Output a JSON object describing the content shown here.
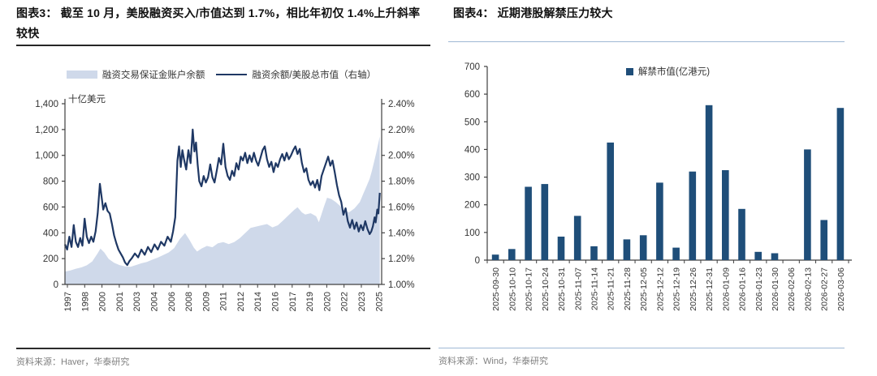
{
  "figure3": {
    "title": "图表3：  截至 10 月，美股融资买入/市值达到 1.7%，相比年初仅 1.4%上升斜率较快",
    "legend_area": "融资交易保证金账户余额",
    "legend_line": "融资余额/美股总市值（右轴）",
    "axis_unit": "十亿美元",
    "source": "资料来源：Haver，华泰研究"
  },
  "figure4": {
    "title": "图表4：  近期港股解禁压力较大",
    "legend": "解禁市值(亿港元)",
    "source": "资料来源：Wind，华泰研究"
  },
  "colors": {
    "line_navy": "#1f3864",
    "area_fill": "#cfd9ea",
    "bar_navy": "#1f4e79",
    "axis_line": "#404040",
    "tick_text": "#333333",
    "source_text": "#808080",
    "rule_dark": "#262626",
    "rule_blue": "#9fb8d4"
  },
  "chart_data": [
    {
      "type": "area",
      "subtype": "area-plus-line-dual-axis",
      "figure_label": "图表3",
      "x_range": [
        1997,
        2026
      ],
      "x_tick_labels": [
        "1997",
        "1998",
        "2000",
        "2001",
        "2003",
        "2004",
        "2006",
        "2008",
        "2009",
        "2011",
        "2012",
        "2014",
        "2016",
        "2017",
        "2019",
        "2020",
        "2022",
        "2023",
        "2025"
      ],
      "x_tick_interval_months": 19,
      "left_axis": {
        "title": "十亿美元",
        "min": 0,
        "max": 1400,
        "tick_step": 200
      },
      "right_axis": {
        "min": 1.0,
        "max": 2.4,
        "tick_step": 0.2,
        "format": "percent"
      },
      "grid": false,
      "legend_position": "top-center",
      "series": [
        {
          "name": "融资交易保证金账户余额",
          "type": "area",
          "axis": "left",
          "color": "#cfd9ea",
          "points": [
            [
              1997.0,
              100
            ],
            [
              1997.5,
              108
            ],
            [
              1998.0,
              122
            ],
            [
              1998.5,
              132
            ],
            [
              1999.0,
              148
            ],
            [
              1999.5,
              178
            ],
            [
              2000.0,
              242
            ],
            [
              2000.25,
              278
            ],
            [
              2000.6,
              248
            ],
            [
              2001.0,
              198
            ],
            [
              2001.5,
              168
            ],
            [
              2002.0,
              150
            ],
            [
              2002.5,
              140
            ],
            [
              2003.0,
              136
            ],
            [
              2003.5,
              150
            ],
            [
              2004.0,
              164
            ],
            [
              2004.5,
              174
            ],
            [
              2005.0,
              192
            ],
            [
              2005.5,
              208
            ],
            [
              2006.0,
              228
            ],
            [
              2006.5,
              248
            ],
            [
              2007.0,
              282
            ],
            [
              2007.5,
              350
            ],
            [
              2008.0,
              398
            ],
            [
              2008.4,
              345
            ],
            [
              2008.8,
              285
            ],
            [
              2009.1,
              255
            ],
            [
              2009.5,
              278
            ],
            [
              2010.0,
              298
            ],
            [
              2010.5,
              288
            ],
            [
              2011.0,
              318
            ],
            [
              2011.5,
              328
            ],
            [
              2012.0,
              312
            ],
            [
              2012.5,
              328
            ],
            [
              2013.0,
              358
            ],
            [
              2013.5,
              398
            ],
            [
              2014.0,
              438
            ],
            [
              2014.5,
              448
            ],
            [
              2015.0,
              458
            ],
            [
              2015.5,
              468
            ],
            [
              2016.0,
              442
            ],
            [
              2016.5,
              458
            ],
            [
              2017.0,
              498
            ],
            [
              2017.5,
              538
            ],
            [
              2018.0,
              578
            ],
            [
              2018.3,
              598
            ],
            [
              2018.7,
              558
            ],
            [
              2019.0,
              542
            ],
            [
              2019.5,
              552
            ],
            [
              2020.0,
              528
            ],
            [
              2020.25,
              482
            ],
            [
              2020.7,
              598
            ],
            [
              2021.0,
              672
            ],
            [
              2021.4,
              662
            ],
            [
              2021.8,
              638
            ],
            [
              2022.2,
              608
            ],
            [
              2022.6,
              572
            ],
            [
              2023.0,
              558
            ],
            [
              2023.5,
              588
            ],
            [
              2024.0,
              638
            ],
            [
              2024.3,
              698
            ],
            [
              2024.6,
              758
            ],
            [
              2024.9,
              818
            ],
            [
              2025.1,
              878
            ],
            [
              2025.3,
              948
            ],
            [
              2025.5,
              1018
            ],
            [
              2025.65,
              1078
            ],
            [
              2025.83,
              1148
            ]
          ]
        },
        {
          "name": "融资余额/美股总市值（右轴）",
          "type": "line",
          "axis": "right",
          "color": "#1f3864",
          "points": [
            [
              1997.0,
              1.31
            ],
            [
              1997.2,
              1.27
            ],
            [
              1997.4,
              1.37
            ],
            [
              1997.6,
              1.29
            ],
            [
              1997.8,
              1.46
            ],
            [
              1998.0,
              1.33
            ],
            [
              1998.2,
              1.29
            ],
            [
              1998.4,
              1.36
            ],
            [
              1998.6,
              1.3
            ],
            [
              1998.8,
              1.51
            ],
            [
              1999.0,
              1.37
            ],
            [
              1999.2,
              1.32
            ],
            [
              1999.4,
              1.37
            ],
            [
              1999.6,
              1.33
            ],
            [
              1999.8,
              1.41
            ],
            [
              2000.0,
              1.55
            ],
            [
              2000.2,
              1.78
            ],
            [
              2000.4,
              1.65
            ],
            [
              2000.5,
              1.58
            ],
            [
              2000.7,
              1.63
            ],
            [
              2000.9,
              1.57
            ],
            [
              2001.1,
              1.55
            ],
            [
              2001.3,
              1.47
            ],
            [
              2001.5,
              1.38
            ],
            [
              2001.7,
              1.32
            ],
            [
              2001.9,
              1.27
            ],
            [
              2002.1,
              1.24
            ],
            [
              2002.3,
              1.21
            ],
            [
              2002.5,
              1.17
            ],
            [
              2002.7,
              1.15
            ],
            [
              2002.9,
              1.18
            ],
            [
              2003.1,
              1.2
            ],
            [
              2003.4,
              1.24
            ],
            [
              2003.7,
              1.21
            ],
            [
              2004.0,
              1.27
            ],
            [
              2004.3,
              1.23
            ],
            [
              2004.6,
              1.29
            ],
            [
              2004.9,
              1.25
            ],
            [
              2005.2,
              1.31
            ],
            [
              2005.5,
              1.27
            ],
            [
              2005.8,
              1.33
            ],
            [
              2006.1,
              1.3
            ],
            [
              2006.4,
              1.37
            ],
            [
              2006.7,
              1.33
            ],
            [
              2006.9,
              1.41
            ],
            [
              2007.1,
              1.52
            ],
            [
              2007.3,
              1.96
            ],
            [
              2007.45,
              2.07
            ],
            [
              2007.6,
              1.91
            ],
            [
              2007.75,
              2.04
            ],
            [
              2007.9,
              1.97
            ],
            [
              2008.1,
              1.89
            ],
            [
              2008.3,
              2.04
            ],
            [
              2008.5,
              1.94
            ],
            [
              2008.7,
              2.2
            ],
            [
              2008.85,
              2.03
            ],
            [
              2009.0,
              2.1
            ],
            [
              2009.15,
              1.93
            ],
            [
              2009.3,
              1.8
            ],
            [
              2009.5,
              1.76
            ],
            [
              2009.7,
              1.84
            ],
            [
              2009.9,
              1.79
            ],
            [
              2010.1,
              1.83
            ],
            [
              2010.3,
              1.93
            ],
            [
              2010.5,
              1.83
            ],
            [
              2010.7,
              1.79
            ],
            [
              2010.9,
              1.88
            ],
            [
              2011.1,
              1.98
            ],
            [
              2011.3,
              1.93
            ],
            [
              2011.5,
              2.09
            ],
            [
              2011.7,
              1.91
            ],
            [
              2011.9,
              1.84
            ],
            [
              2012.1,
              1.81
            ],
            [
              2012.3,
              1.88
            ],
            [
              2012.5,
              1.84
            ],
            [
              2012.7,
              1.94
            ],
            [
              2012.9,
              1.89
            ],
            [
              2013.1,
              1.99
            ],
            [
              2013.3,
              1.96
            ],
            [
              2013.5,
              2.02
            ],
            [
              2013.7,
              1.94
            ],
            [
              2013.9,
              2.0
            ],
            [
              2014.1,
              1.95
            ],
            [
              2014.3,
              2.02
            ],
            [
              2014.5,
              1.96
            ],
            [
              2014.7,
              1.92
            ],
            [
              2014.9,
              1.98
            ],
            [
              2015.1,
              2.04
            ],
            [
              2015.3,
              2.07
            ],
            [
              2015.5,
              1.97
            ],
            [
              2015.7,
              1.91
            ],
            [
              2015.9,
              1.95
            ],
            [
              2016.1,
              1.87
            ],
            [
              2016.3,
              1.94
            ],
            [
              2016.5,
              1.91
            ],
            [
              2016.7,
              1.97
            ],
            [
              2016.9,
              2.01
            ],
            [
              2017.1,
              1.96
            ],
            [
              2017.3,
              2.02
            ],
            [
              2017.5,
              1.97
            ],
            [
              2017.7,
              2.0
            ],
            [
              2017.9,
              2.04
            ],
            [
              2018.1,
              2.07
            ],
            [
              2018.3,
              2.01
            ],
            [
              2018.5,
              2.05
            ],
            [
              2018.7,
              1.94
            ],
            [
              2018.9,
              1.87
            ],
            [
              2019.1,
              1.9
            ],
            [
              2019.3,
              1.81
            ],
            [
              2019.5,
              1.77
            ],
            [
              2019.7,
              1.8
            ],
            [
              2019.9,
              1.75
            ],
            [
              2020.1,
              1.81
            ],
            [
              2020.3,
              1.73
            ],
            [
              2020.5,
              1.84
            ],
            [
              2020.7,
              1.89
            ],
            [
              2020.9,
              1.94
            ],
            [
              2021.1,
              1.99
            ],
            [
              2021.3,
              1.92
            ],
            [
              2021.5,
              1.96
            ],
            [
              2021.7,
              1.87
            ],
            [
              2021.9,
              1.77
            ],
            [
              2022.1,
              1.69
            ],
            [
              2022.3,
              1.64
            ],
            [
              2022.5,
              1.54
            ],
            [
              2022.7,
              1.59
            ],
            [
              2022.9,
              1.49
            ],
            [
              2023.1,
              1.44
            ],
            [
              2023.3,
              1.5
            ],
            [
              2023.5,
              1.43
            ],
            [
              2023.7,
              1.48
            ],
            [
              2023.9,
              1.41
            ],
            [
              2024.1,
              1.46
            ],
            [
              2024.3,
              1.42
            ],
            [
              2024.5,
              1.49
            ],
            [
              2024.7,
              1.43
            ],
            [
              2024.9,
              1.39
            ],
            [
              2025.05,
              1.41
            ],
            [
              2025.2,
              1.45
            ],
            [
              2025.35,
              1.52
            ],
            [
              2025.45,
              1.48
            ],
            [
              2025.6,
              1.58
            ],
            [
              2025.7,
              1.55
            ],
            [
              2025.83,
              1.71
            ]
          ]
        }
      ]
    },
    {
      "type": "bar",
      "figure_label": "图表4",
      "title": "近期港股解禁压力较大",
      "legend": "解禁市值(亿港元)",
      "xlabel": "",
      "ylabel": "",
      "ylim": [
        0,
        700
      ],
      "ytick_step": 100,
      "grid": false,
      "bar_color": "#1f4e79",
      "categories": [
        "2025-09-30",
        "2025-10-10",
        "2025-10-17",
        "2025-10-24",
        "2025-10-31",
        "2025-11-07",
        "2025-11-14",
        "2025-11-21",
        "2025-11-28",
        "2025-12-05",
        "2025-12-12",
        "2025-12-19",
        "2025-12-26",
        "2025-12-31",
        "2026-01-09",
        "2026-01-16",
        "2026-01-23",
        "2026-01-30",
        "2026-02-06",
        "2026-02-13",
        "2026-02-27",
        "2026-03-06"
      ],
      "values": [
        20,
        40,
        265,
        275,
        85,
        160,
        50,
        425,
        75,
        90,
        280,
        45,
        320,
        560,
        325,
        185,
        30,
        25,
        0,
        400,
        145,
        550
      ]
    }
  ]
}
